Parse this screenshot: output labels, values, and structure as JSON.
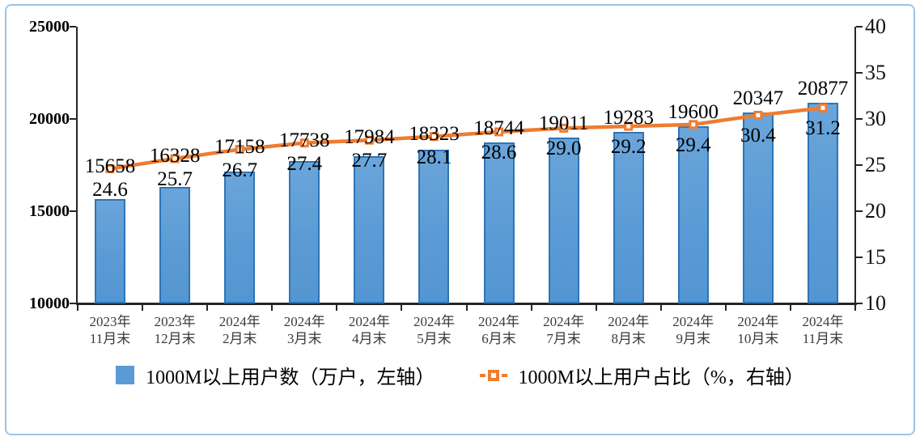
{
  "chart_data": {
    "type": "bar",
    "subtype": "bar-line-combo",
    "title": "",
    "categories": [
      "2023年11月末",
      "2023年12月末",
      "2024年2月末",
      "2024年3月末",
      "2024年4月末",
      "2024年5月末",
      "2024年6月末",
      "2024年7月末",
      "2024年8月末",
      "2024年9月末",
      "2024年10月末",
      "2024年11月末"
    ],
    "series": [
      {
        "name": "1000M以上用户数（万户，左轴）",
        "type": "bar",
        "axis": "left",
        "values": [
          15658,
          16328,
          17158,
          17738,
          17984,
          18323,
          18744,
          19011,
          19283,
          19600,
          20347,
          20877
        ],
        "labels": [
          "15658",
          "16328",
          "17158",
          "17738",
          "17984",
          "18323",
          "18744",
          "19011",
          "19283",
          "19600",
          "20347",
          "20877"
        ],
        "color": "#5B9BD5",
        "border_color": "#2E75B6"
      },
      {
        "name": "1000M以上用户占比（%，右轴）",
        "type": "line",
        "axis": "right",
        "values": [
          24.6,
          25.7,
          26.7,
          27.4,
          27.7,
          28.1,
          28.6,
          29.0,
          29.2,
          29.4,
          30.4,
          31.2
        ],
        "labels": [
          "24.6",
          "25.7",
          "26.7",
          "27.4",
          "27.7",
          "28.1",
          "28.6",
          "29.0",
          "29.2",
          "29.4",
          "30.4",
          "31.2"
        ],
        "color": "#ED7D31",
        "marker": "open-square"
      }
    ],
    "left_axis": {
      "min": 10000,
      "max": 25000,
      "ticks": [
        10000,
        15000,
        20000,
        25000
      ]
    },
    "right_axis": {
      "min": 10,
      "max": 40,
      "ticks": [
        10,
        15,
        20,
        25,
        30,
        35,
        40
      ]
    },
    "grid": "off",
    "legend_position": "bottom",
    "style": {
      "frame_border": "#9DC3E6",
      "axis_color": "#262626",
      "xlabel_color": "#3A3A3A"
    }
  }
}
